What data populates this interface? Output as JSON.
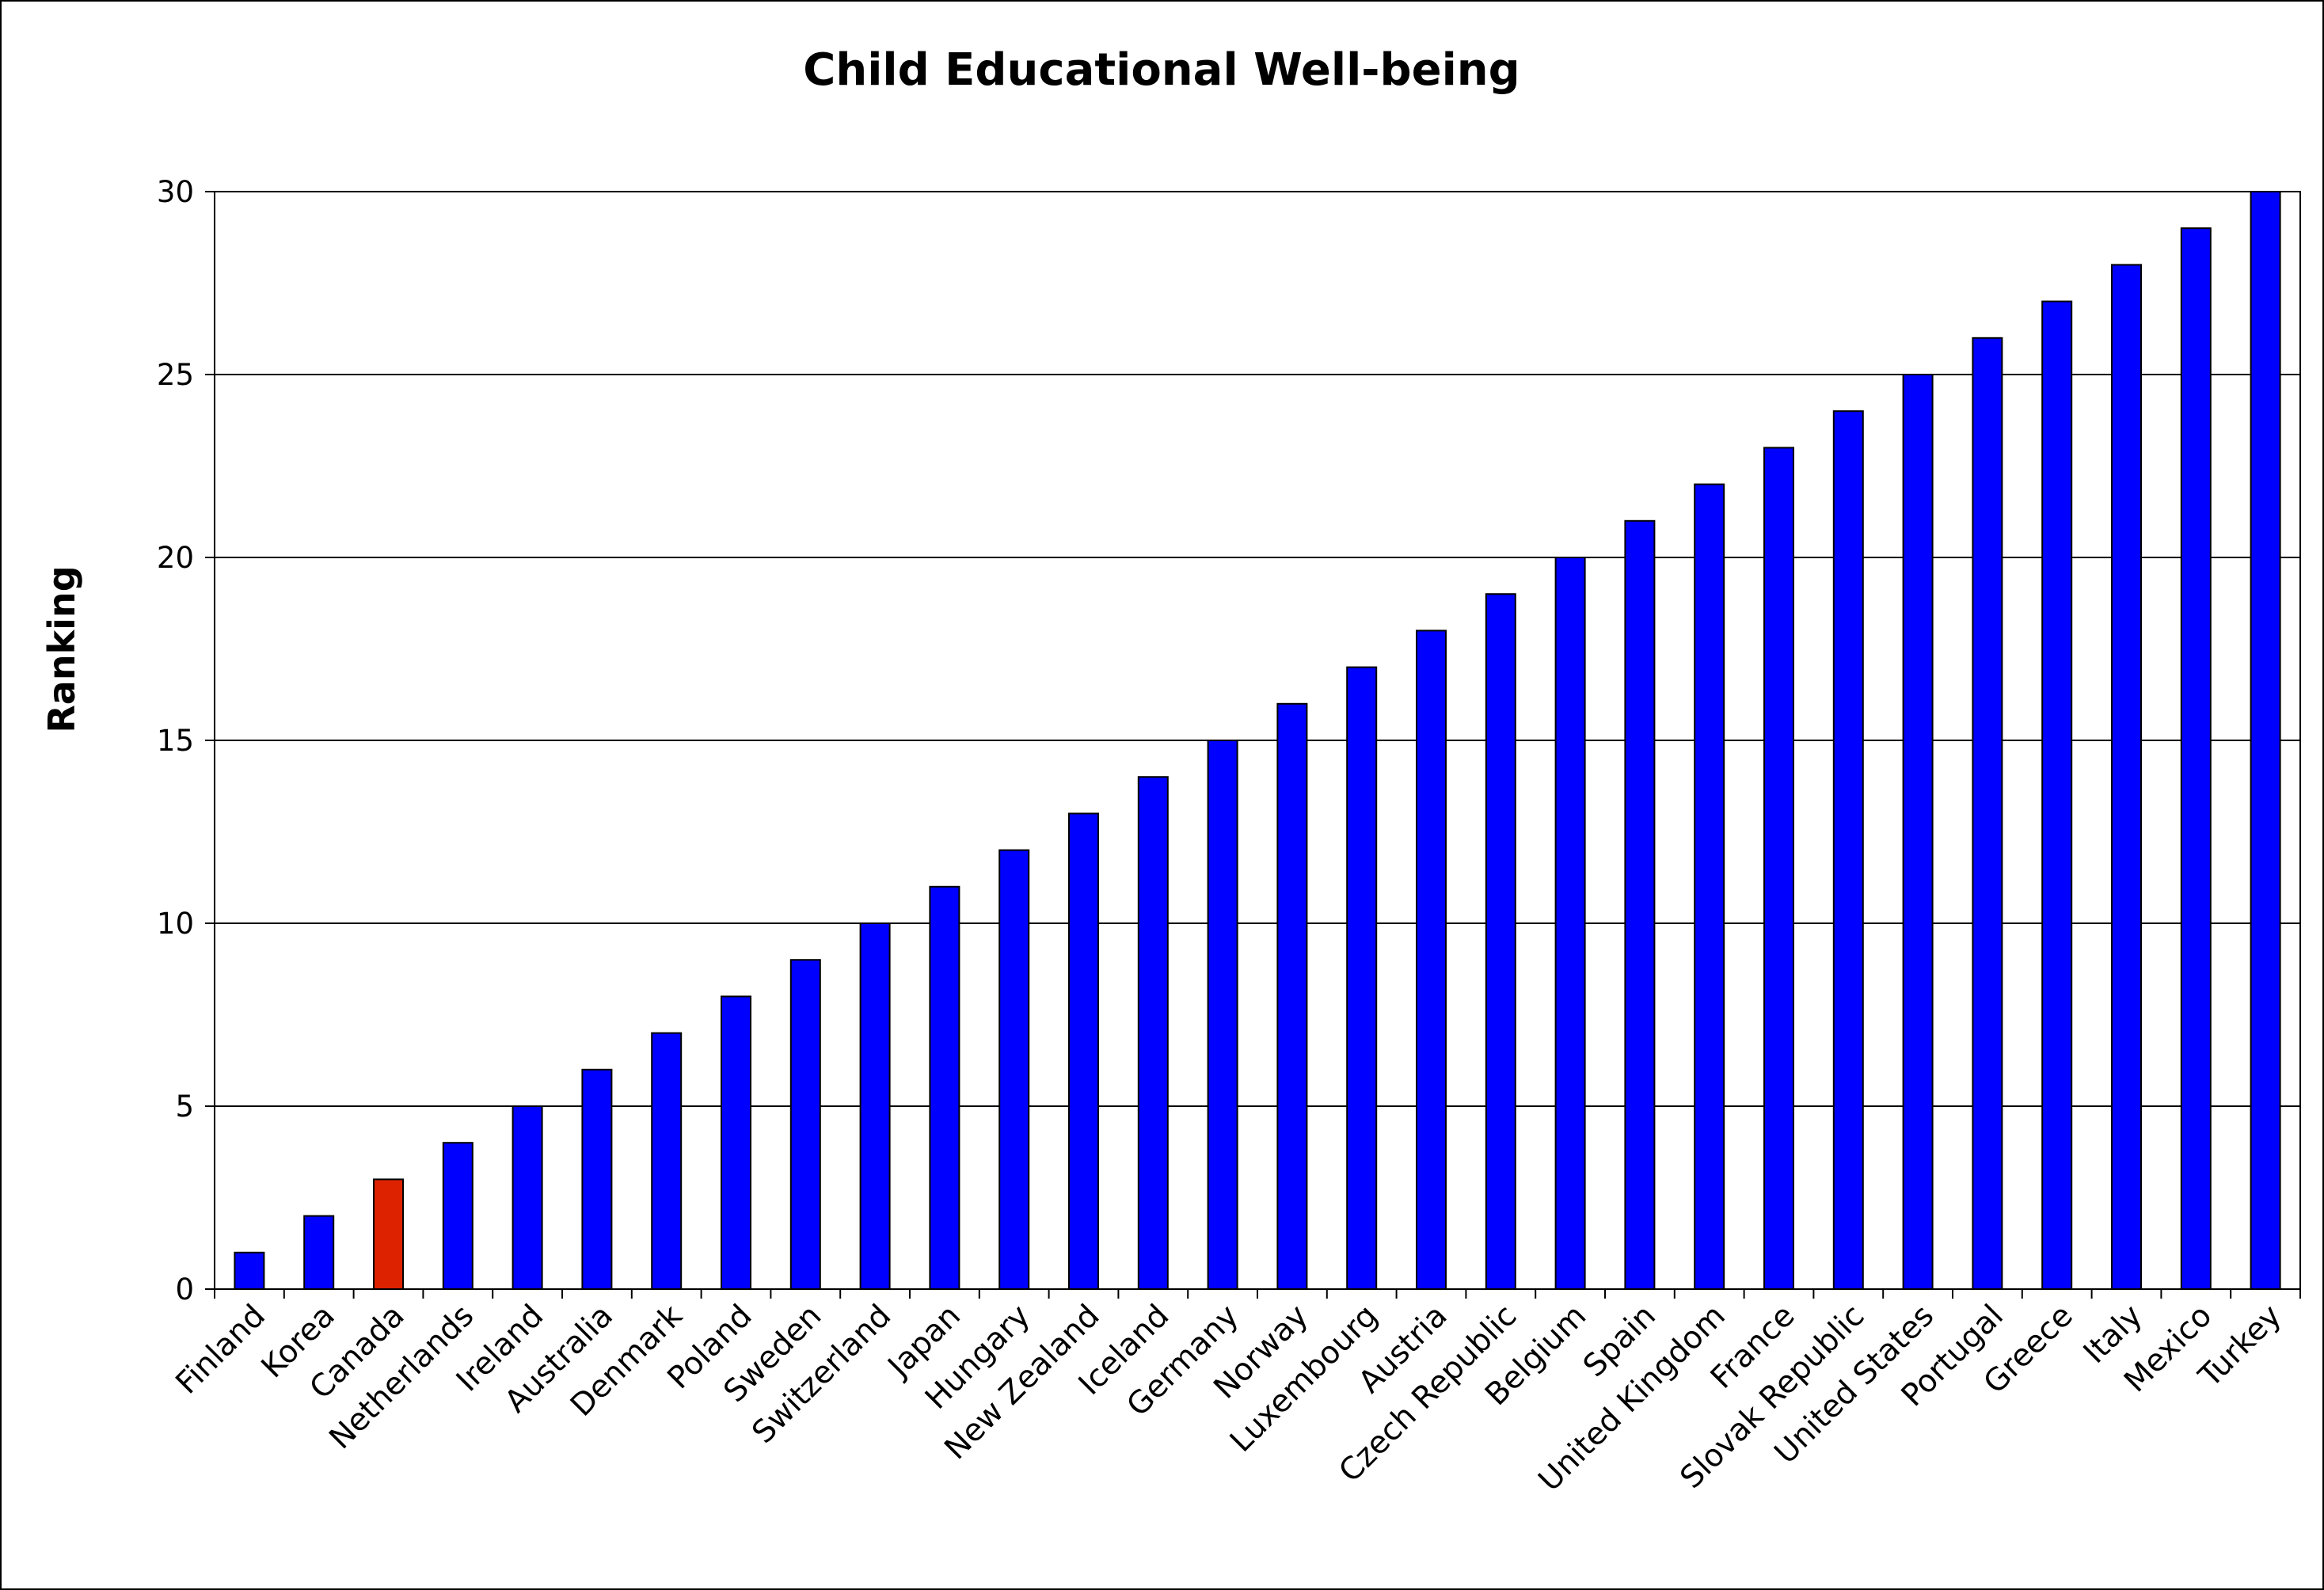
{
  "chart_data": {
    "type": "bar",
    "title": "Child Educational Well-being",
    "xlabel": "",
    "ylabel": "Ranking",
    "ylim": [
      0,
      30
    ],
    "yticks": [
      0,
      5,
      10,
      15,
      20,
      25,
      30
    ],
    "grid": true,
    "legend": "none",
    "categories": [
      "Finland",
      "Korea",
      "Canada",
      "Netherlands",
      "Ireland",
      "Australia",
      "Denmark",
      "Poland",
      "Sweden",
      "Switzerland",
      "Japan",
      "Hungary",
      "New Zealand",
      "Iceland",
      "Germany",
      "Norway",
      "Luxembourg",
      "Austria",
      "Czech Republic",
      "Belgium",
      "Spain",
      "United Kingdom",
      "France",
      "Slovak Republic",
      "United States",
      "Portugal",
      "Greece",
      "Italy",
      "Mexico",
      "Turkey"
    ],
    "values": [
      1,
      2,
      3,
      4,
      5,
      6,
      7,
      8,
      9,
      10,
      11,
      12,
      13,
      14,
      15,
      16,
      17,
      18,
      19,
      20,
      21,
      22,
      23,
      24,
      25,
      26,
      27,
      28,
      29,
      30
    ],
    "highlight_category": "Canada",
    "colors": {
      "bar": "#0000ff",
      "highlight": "#dd2200",
      "grid": "#000000",
      "outline": "#000000"
    }
  }
}
